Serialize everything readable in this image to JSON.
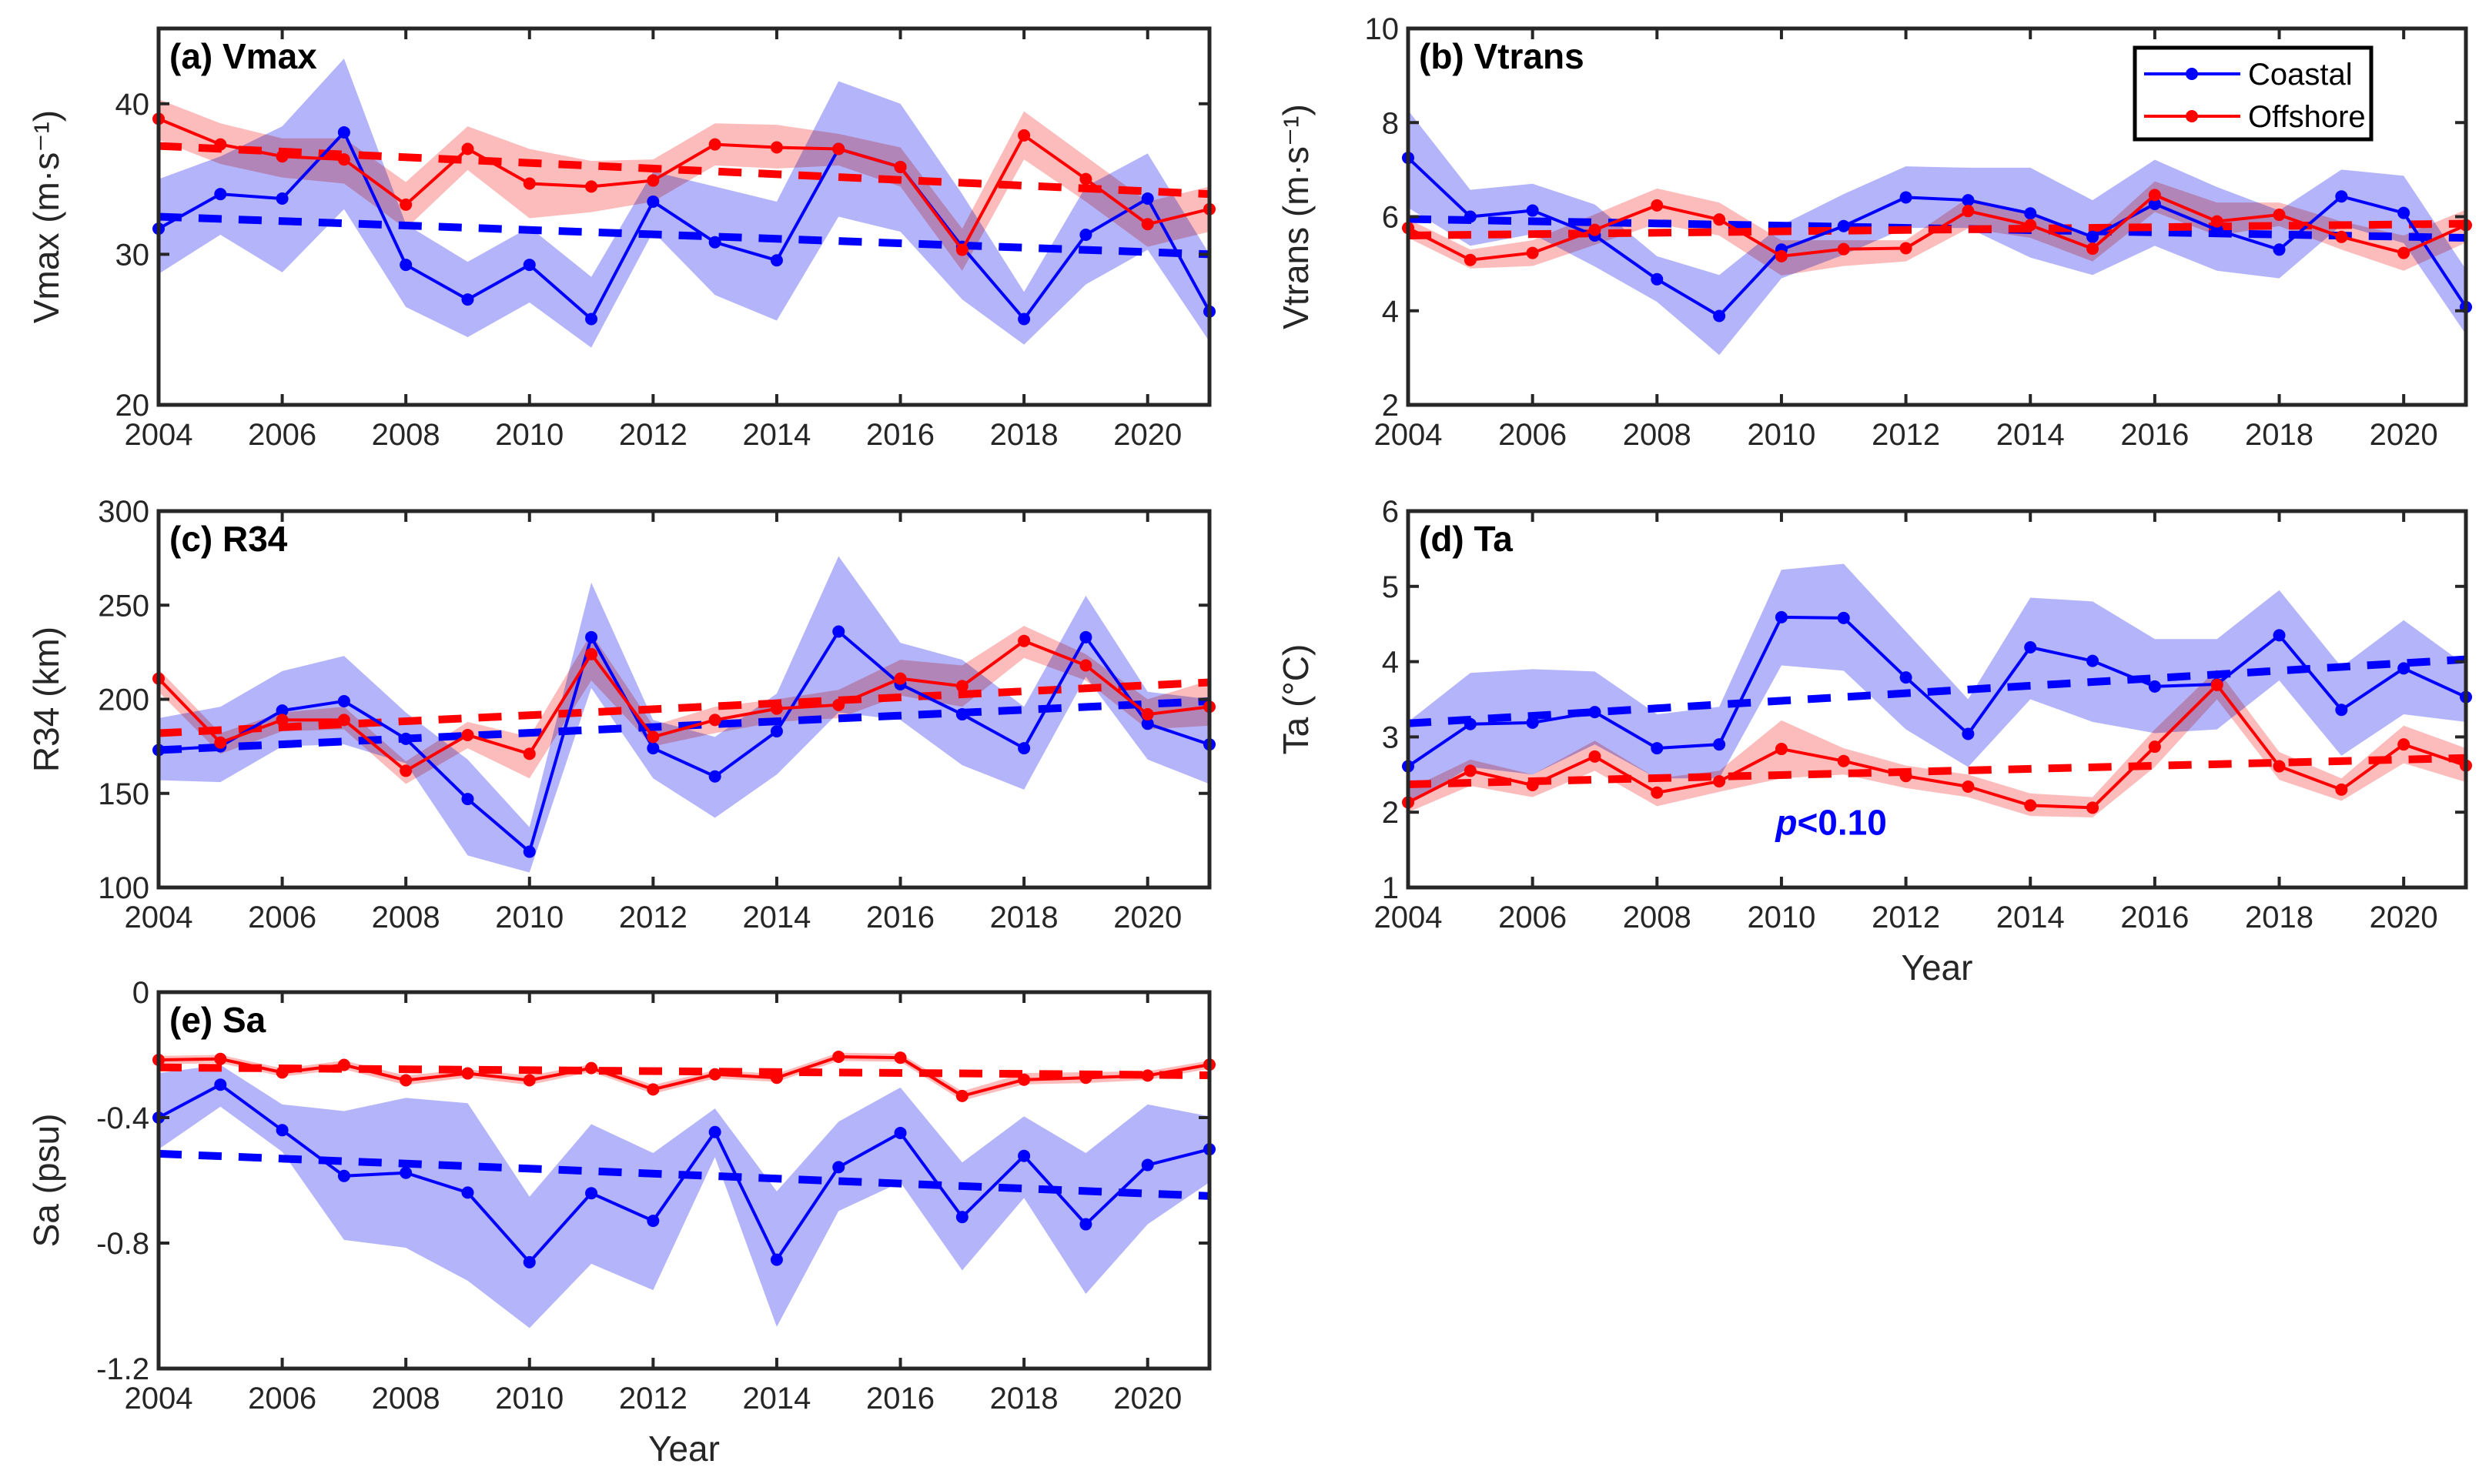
{
  "colors": {
    "coastal": "#0000ff",
    "coastal_band": "#b0b0fa",
    "offshore": "#ff0000",
    "offshore_band": "#fbb0b0",
    "axis": "#262626"
  },
  "legend": {
    "placement": "top-right of panel (b)",
    "entries": [
      "Coastal",
      "Offshore"
    ]
  },
  "chart_data": [
    {
      "type": "line",
      "panel": "a",
      "title": "(a) Vmax",
      "xlabel": "",
      "ylabel": "Vmax (m·s⁻¹)",
      "xlim": [
        2004,
        2021
      ],
      "ylim": [
        20,
        45
      ],
      "xticks": [
        2004,
        2006,
        2008,
        2010,
        2012,
        2014,
        2016,
        2018,
        2020
      ],
      "yticks": [
        20,
        30,
        40
      ],
      "x": [
        2004,
        2005,
        2006,
        2007,
        2008,
        2009,
        2010,
        2011,
        2012,
        2013,
        2014,
        2015,
        2016,
        2017,
        2018,
        2019,
        2020,
        2021
      ],
      "series": [
        {
          "name": "Coastal",
          "values": [
            31.7,
            34.0,
            33.7,
            38.1,
            29.3,
            27.0,
            29.3,
            25.7,
            33.5,
            30.8,
            29.6,
            37.0,
            35.8,
            30.5,
            25.7,
            31.3,
            33.7,
            26.2
          ],
          "upper": [
            35.0,
            36.5,
            38.5,
            43.0,
            32.0,
            29.5,
            31.8,
            28.5,
            35.5,
            34.5,
            33.5,
            41.5,
            40.0,
            34.0,
            27.5,
            34.5,
            36.7,
            30.0
          ],
          "lower": [
            28.7,
            31.3,
            28.8,
            33.0,
            26.5,
            24.5,
            26.8,
            23.8,
            31.5,
            27.3,
            25.6,
            32.5,
            31.5,
            27.0,
            24.0,
            28.0,
            30.3,
            24.2
          ],
          "trend": [
            32.5,
            30.0
          ]
        },
        {
          "name": "Offshore",
          "values": [
            39.0,
            37.3,
            36.5,
            36.3,
            33.3,
            37.0,
            34.7,
            34.5,
            34.9,
            37.3,
            37.1,
            37.0,
            35.8,
            30.3,
            37.9,
            35.0,
            32.0,
            33.0
          ],
          "upper": [
            40.3,
            38.7,
            37.7,
            37.7,
            34.8,
            38.5,
            37.0,
            36.2,
            36.3,
            38.7,
            38.6,
            38.0,
            37.1,
            31.7,
            39.5,
            36.5,
            33.5,
            34.5
          ],
          "lower": [
            37.6,
            36.0,
            35.1,
            34.7,
            31.7,
            35.6,
            32.4,
            32.8,
            33.5,
            35.9,
            35.7,
            35.9,
            34.5,
            28.9,
            36.3,
            33.5,
            30.5,
            31.5
          ],
          "trend": [
            37.2,
            34.0
          ]
        }
      ]
    },
    {
      "type": "line",
      "panel": "b",
      "title": "(b) Vtrans",
      "xlabel": "",
      "ylabel": "Vtrans (m·s⁻¹)",
      "xlim": [
        2004,
        2021
      ],
      "ylim": [
        2,
        10
      ],
      "xticks": [
        2004,
        2006,
        2008,
        2010,
        2012,
        2014,
        2016,
        2018,
        2020
      ],
      "yticks": [
        2,
        4,
        6,
        8,
        10
      ],
      "x": [
        2004,
        2005,
        2006,
        2007,
        2008,
        2009,
        2010,
        2011,
        2012,
        2013,
        2014,
        2015,
        2016,
        2017,
        2018,
        2019,
        2020,
        2021
      ],
      "series": [
        {
          "name": "Coastal",
          "values": [
            7.25,
            6.0,
            6.13,
            5.6,
            4.67,
            3.89,
            5.3,
            5.8,
            6.41,
            6.35,
            6.07,
            5.57,
            6.27,
            5.72,
            5.3,
            6.43,
            6.08,
            4.08
          ],
          "upper": [
            8.26,
            6.57,
            6.7,
            6.26,
            5.16,
            4.76,
            5.82,
            6.48,
            7.07,
            7.04,
            7.04,
            6.35,
            7.21,
            6.63,
            6.13,
            7.0,
            6.87,
            4.88
          ],
          "lower": [
            6.19,
            5.38,
            5.63,
            4.94,
            4.19,
            3.06,
            4.69,
            5.19,
            5.76,
            5.76,
            5.13,
            4.76,
            5.38,
            4.85,
            4.69,
            5.82,
            5.44,
            3.5
          ],
          "trend": [
            5.95,
            5.55
          ]
        },
        {
          "name": "Offshore",
          "values": [
            5.76,
            5.08,
            5.23,
            5.72,
            6.24,
            5.94,
            5.16,
            5.31,
            5.33,
            6.12,
            5.82,
            5.32,
            6.46,
            5.9,
            6.04,
            5.57,
            5.23,
            5.82
          ],
          "upper": [
            5.95,
            5.3,
            5.5,
            6.05,
            6.6,
            6.3,
            5.5,
            5.5,
            5.5,
            6.4,
            6.05,
            5.55,
            6.75,
            6.3,
            6.3,
            5.9,
            5.6,
            6.15
          ],
          "lower": [
            5.55,
            4.9,
            4.95,
            5.4,
            5.85,
            5.6,
            4.75,
            4.95,
            5.05,
            5.75,
            5.55,
            5.05,
            6.1,
            5.6,
            5.8,
            5.3,
            4.85,
            5.45
          ],
          "trend": [
            5.6,
            5.85
          ]
        }
      ]
    },
    {
      "type": "line",
      "panel": "c",
      "title": "(c) R34",
      "xlabel": "",
      "ylabel": "R34 (km)",
      "xlim": [
        2004,
        2021
      ],
      "ylim": [
        100,
        300
      ],
      "xticks": [
        2004,
        2006,
        2008,
        2010,
        2012,
        2014,
        2016,
        2018,
        2020
      ],
      "yticks": [
        100,
        150,
        200,
        250,
        300
      ],
      "x": [
        2004,
        2005,
        2006,
        2007,
        2008,
        2009,
        2010,
        2011,
        2012,
        2013,
        2014,
        2015,
        2016,
        2017,
        2018,
        2019,
        2020,
        2021
      ],
      "series": [
        {
          "name": "Coastal",
          "values": [
            173,
            175,
            194,
            199,
            179,
            147,
            119,
            233,
            174,
            159,
            183,
            236,
            208,
            192,
            174,
            233,
            187,
            176
          ],
          "upper": [
            190,
            196,
            215,
            223,
            193,
            168,
            132,
            262,
            189,
            180,
            203,
            276,
            230,
            221,
            196,
            255,
            204,
            200
          ],
          "lower": [
            157,
            156,
            175,
            176,
            166,
            117,
            108,
            206,
            158,
            137,
            160,
            193,
            189,
            165,
            152,
            212,
            168,
            155
          ],
          "trend": [
            173,
            199
          ]
        },
        {
          "name": "Offshore",
          "values": [
            211,
            177,
            189,
            189,
            162,
            181,
            171,
            224,
            180,
            189,
            195,
            197,
            211,
            207,
            231,
            218,
            192,
            196
          ],
          "upper": [
            216,
            182,
            193,
            196,
            167,
            188,
            180,
            235,
            186,
            196,
            200,
            205,
            221,
            218,
            239,
            224,
            200,
            210
          ],
          "lower": [
            204,
            171,
            183,
            184,
            155,
            174,
            158,
            210,
            175,
            182,
            188,
            190,
            202,
            196,
            222,
            210,
            184,
            186
          ],
          "trend": [
            182,
            209
          ]
        }
      ]
    },
    {
      "type": "line",
      "panel": "d",
      "title": "(d) Ta",
      "xlabel": "Year",
      "ylabel": "Ta (°C)",
      "xlim": [
        2004,
        2021
      ],
      "ylim": [
        1,
        6
      ],
      "xticks": [
        2004,
        2006,
        2008,
        2010,
        2012,
        2014,
        2016,
        2018,
        2020
      ],
      "yticks": [
        1,
        2,
        3,
        4,
        5,
        6
      ],
      "annotation": {
        "italic": "p",
        "rest": "<0.10",
        "data_x": 2010.8,
        "data_y": 1.7
      },
      "x": [
        2004,
        2005,
        2006,
        2007,
        2008,
        2009,
        2010,
        2011,
        2012,
        2013,
        2014,
        2015,
        2016,
        2017,
        2018,
        2019,
        2020,
        2021
      ],
      "series": [
        {
          "name": "Coastal",
          "values": [
            2.61,
            3.17,
            3.19,
            3.33,
            2.85,
            2.9,
            4.59,
            4.58,
            3.79,
            3.04,
            4.19,
            4.01,
            3.67,
            3.7,
            4.35,
            3.36,
            3.91,
            3.53
          ],
          "upper": [
            3.2,
            3.85,
            3.9,
            3.87,
            3.3,
            3.4,
            5.22,
            5.3,
            4.4,
            3.5,
            4.85,
            4.8,
            4.3,
            4.3,
            4.95,
            3.93,
            4.55,
            3.95
          ],
          "lower": [
            2.1,
            2.6,
            2.5,
            2.9,
            2.45,
            2.45,
            3.95,
            3.88,
            3.1,
            2.6,
            3.5,
            3.2,
            3.05,
            3.1,
            3.75,
            2.75,
            3.3,
            3.2
          ],
          "trend": [
            3.18,
            4.03
          ]
        },
        {
          "name": "Offshore",
          "values": [
            2.13,
            2.55,
            2.36,
            2.74,
            2.26,
            2.41,
            2.84,
            2.68,
            2.48,
            2.34,
            2.09,
            2.06,
            2.87,
            3.69,
            2.61,
            2.3,
            2.9,
            2.62
          ],
          "upper": [
            2.3,
            2.7,
            2.5,
            2.95,
            2.45,
            2.55,
            3.22,
            2.85,
            2.62,
            2.5,
            2.25,
            2.2,
            3.1,
            3.9,
            2.8,
            2.45,
            3.15,
            2.85
          ],
          "lower": [
            2.0,
            2.35,
            2.2,
            2.55,
            2.08,
            2.27,
            2.45,
            2.5,
            2.32,
            2.2,
            1.95,
            1.93,
            2.6,
            3.5,
            2.43,
            2.15,
            2.65,
            2.4
          ],
          "trend": [
            2.37,
            2.72
          ]
        }
      ]
    },
    {
      "type": "line",
      "panel": "e",
      "title": "(e) Sa",
      "xlabel": "Year",
      "ylabel": "Sa (psu)",
      "xlim": [
        2004,
        2021
      ],
      "ylim": [
        -1.2,
        0
      ],
      "xticks": [
        2004,
        2006,
        2008,
        2010,
        2012,
        2014,
        2016,
        2018,
        2020
      ],
      "yticks": [
        -1.2,
        -0.8,
        -0.4,
        0
      ],
      "yticklabels": [
        "-1.2",
        "-0.8",
        "-0.4",
        "0"
      ],
      "x": [
        2004,
        2005,
        2006,
        2007,
        2008,
        2009,
        2010,
        2011,
        2012,
        2013,
        2014,
        2015,
        2016,
        2017,
        2018,
        2019,
        2020,
        2021
      ],
      "series": [
        {
          "name": "Coastal",
          "values": [
            -0.4,
            -0.295,
            -0.44,
            -0.586,
            -0.576,
            -0.639,
            -0.861,
            -0.641,
            -0.729,
            -0.446,
            -0.853,
            -0.558,
            -0.449,
            -0.717,
            -0.522,
            -0.74,
            -0.551,
            -0.501
          ],
          "upper": [
            -0.258,
            -0.232,
            -0.358,
            -0.379,
            -0.337,
            -0.354,
            -0.652,
            -0.421,
            -0.513,
            -0.371,
            -0.635,
            -0.413,
            -0.304,
            -0.543,
            -0.396,
            -0.513,
            -0.358,
            -0.396
          ],
          "lower": [
            -0.501,
            -0.365,
            -0.509,
            -0.79,
            -0.815,
            -0.92,
            -1.071,
            -0.866,
            -0.95,
            -0.526,
            -1.067,
            -0.698,
            -0.606,
            -0.887,
            -0.656,
            -0.962,
            -0.74,
            -0.606
          ],
          "trend": [
            -0.515,
            -0.65
          ]
        },
        {
          "name": "Offshore",
          "values": [
            -0.216,
            -0.213,
            -0.256,
            -0.232,
            -0.281,
            -0.259,
            -0.281,
            -0.242,
            -0.31,
            -0.262,
            -0.273,
            -0.206,
            -0.209,
            -0.331,
            -0.279,
            -0.273,
            -0.266,
            -0.231
          ],
          "upper": [
            -0.203,
            -0.2,
            -0.243,
            -0.218,
            -0.266,
            -0.246,
            -0.266,
            -0.23,
            -0.296,
            -0.249,
            -0.26,
            -0.193,
            -0.196,
            -0.316,
            -0.258,
            -0.255,
            -0.252,
            -0.218
          ],
          "lower": [
            -0.23,
            -0.226,
            -0.269,
            -0.246,
            -0.296,
            -0.272,
            -0.296,
            -0.254,
            -0.324,
            -0.275,
            -0.286,
            -0.219,
            -0.222,
            -0.346,
            -0.294,
            -0.29,
            -0.28,
            -0.244
          ],
          "trend": [
            -0.24,
            -0.265
          ]
        }
      ]
    }
  ]
}
